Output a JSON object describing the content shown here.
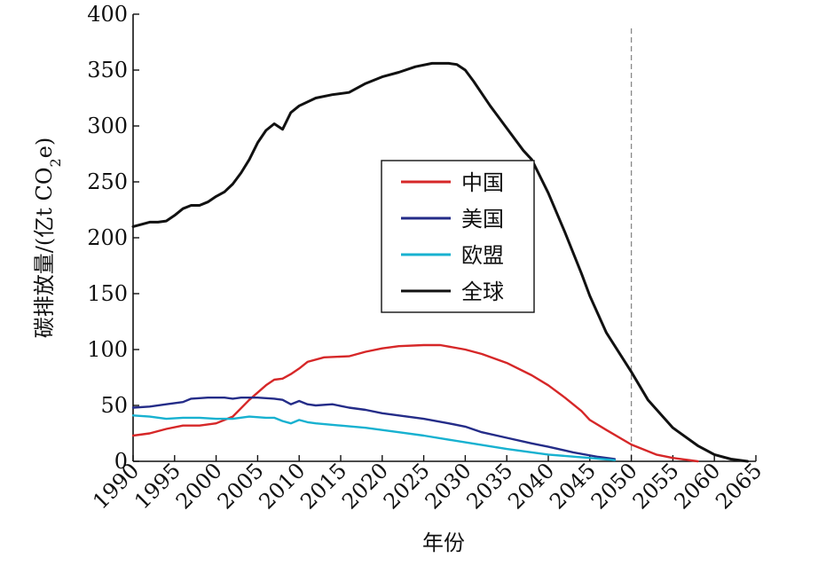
{
  "chart_data": {
    "type": "line",
    "xlabel": "年份",
    "ylabel": "碳排放量/(亿t CO",
    "ylabel_sub": "2",
    "ylabel_tail": "e)",
    "xlim": [
      1990,
      2065
    ],
    "ylim": [
      0,
      400
    ],
    "xticks": [
      1990,
      1995,
      2000,
      2005,
      2010,
      2015,
      2020,
      2025,
      2030,
      2035,
      2040,
      2045,
      2050,
      2055,
      2060,
      2065
    ],
    "yticks": [
      0,
      50,
      100,
      150,
      200,
      250,
      300,
      350,
      400
    ],
    "vline_x": 2050,
    "legend_position": "center",
    "grid": false,
    "series": [
      {
        "name": "中国",
        "color": "#d62728",
        "x": [
          1990,
          1992,
          1994,
          1996,
          1998,
          2000,
          2002,
          2004,
          2006,
          2007,
          2008,
          2009,
          2010,
          2011,
          2013,
          2016,
          2018,
          2020,
          2022,
          2025,
          2027,
          2030,
          2032,
          2035,
          2038,
          2040,
          2042,
          2044,
          2045,
          2047,
          2050,
          2053,
          2055,
          2058
        ],
        "y": [
          23,
          25,
          29,
          32,
          32,
          34,
          40,
          55,
          68,
          73,
          74,
          78,
          83,
          89,
          93,
          94,
          98,
          101,
          103,
          104,
          104,
          100,
          96,
          88,
          77,
          68,
          57,
          45,
          37,
          28,
          15,
          6,
          3,
          0
        ]
      },
      {
        "name": "美国",
        "color": "#242c88",
        "x": [
          1990,
          1992,
          1994,
          1996,
          1997,
          1999,
          2001,
          2002,
          2003,
          2005,
          2007,
          2008,
          2009,
          2010,
          2011,
          2012,
          2014,
          2016,
          2018,
          2020,
          2022,
          2025,
          2028,
          2030,
          2032,
          2035,
          2038,
          2040,
          2043,
          2046,
          2048
        ],
        "y": [
          48,
          49,
          51,
          53,
          56,
          57,
          57,
          56,
          57,
          57,
          56,
          55,
          51,
          54,
          51,
          50,
          51,
          48,
          46,
          43,
          41,
          38,
          34,
          31,
          26,
          21,
          16,
          13,
          8,
          4,
          2
        ]
      },
      {
        "name": "欧盟",
        "color": "#17b1d0",
        "x": [
          1990,
          1992,
          1994,
          1996,
          1998,
          2000,
          2002,
          2004,
          2006,
          2007,
          2008,
          2009,
          2010,
          2011,
          2012,
          2015,
          2018,
          2020,
          2022,
          2025,
          2030,
          2035,
          2040,
          2045,
          2048
        ],
        "y": [
          41,
          40,
          38,
          39,
          39,
          38,
          38,
          40,
          39,
          39,
          36,
          34,
          37,
          35,
          34,
          32,
          30,
          28,
          26,
          23,
          17,
          11,
          6,
          3,
          1
        ]
      },
      {
        "name": "全球",
        "color": "#111111",
        "x": [
          1990,
          1991,
          1992,
          1993,
          1994,
          1995,
          1996,
          1997,
          1998,
          1999,
          2000,
          2001,
          2002,
          2003,
          2004,
          2005,
          2006,
          2007,
          2008,
          2009,
          2010,
          2012,
          2014,
          2016,
          2018,
          2020,
          2022,
          2024,
          2026,
          2028,
          2029,
          2030,
          2031,
          2033,
          2035,
          2037,
          2038,
          2040,
          2042,
          2044,
          2045,
          2047,
          2050,
          2052,
          2055,
          2058,
          2060,
          2062,
          2064
        ],
        "y": [
          210,
          212,
          214,
          214,
          215,
          220,
          226,
          229,
          229,
          232,
          237,
          241,
          248,
          258,
          270,
          285,
          296,
          302,
          297,
          312,
          318,
          325,
          328,
          330,
          338,
          344,
          348,
          353,
          356,
          356,
          355,
          350,
          340,
          318,
          298,
          278,
          270,
          240,
          205,
          168,
          148,
          115,
          80,
          55,
          30,
          14,
          6,
          2,
          0
        ]
      }
    ]
  }
}
